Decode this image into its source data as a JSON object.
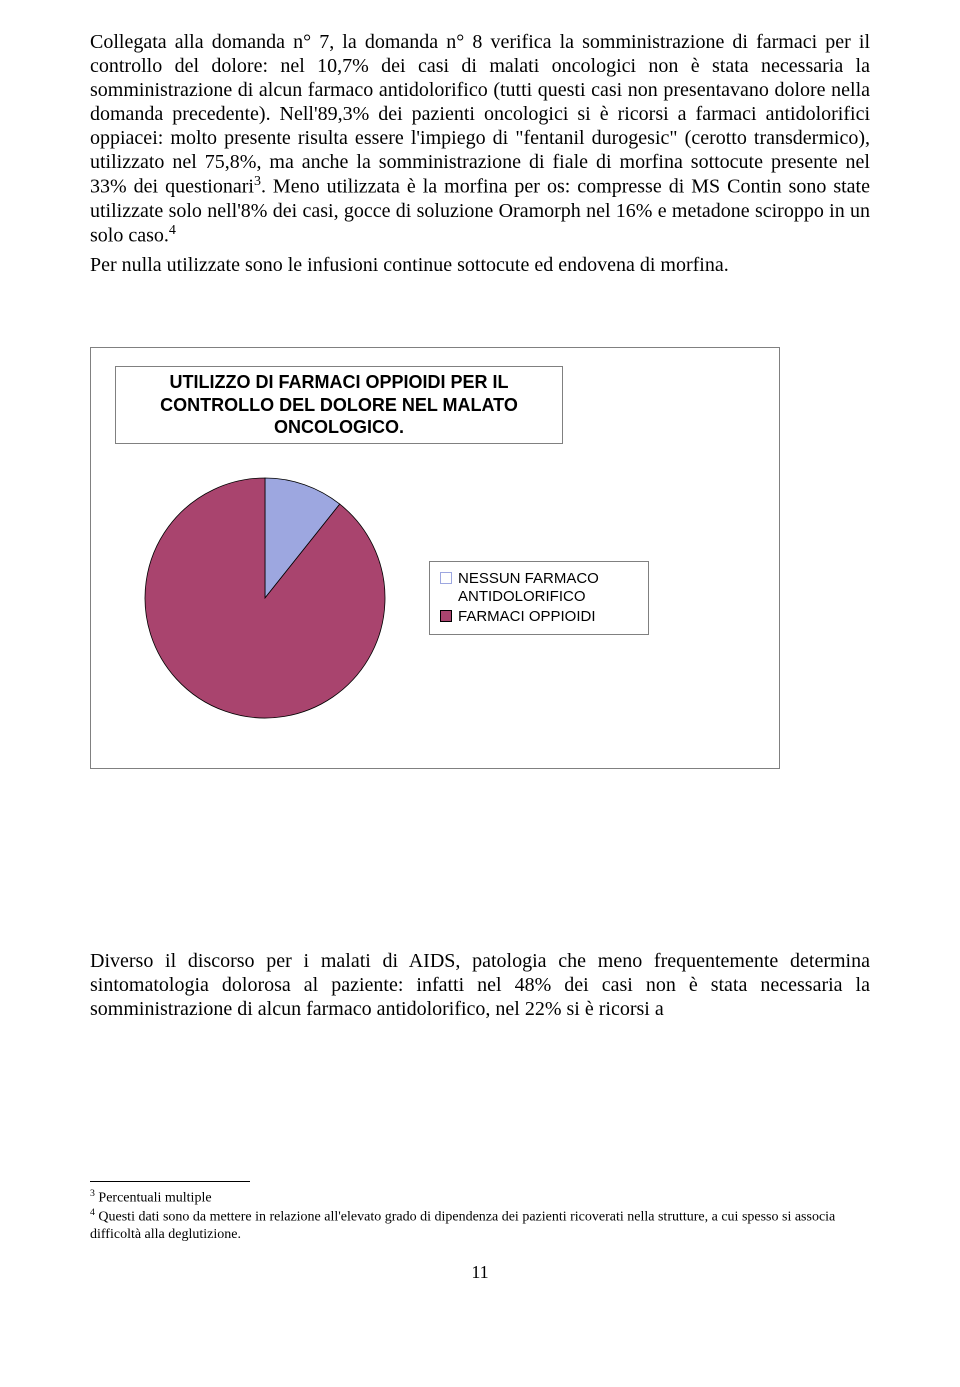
{
  "paragraphs": {
    "p1": "Collegata alla domanda n° 7, la domanda n° 8 verifica la somministrazione di farmaci per il controllo del dolore: nel 10,7% dei casi di malati oncologici non è stata necessaria la somministrazione di alcun farmaco antidolorifico (tutti questi casi non presentavano dolore nella domanda precedente). Nell'89,3% dei pazienti oncologici si è ricorsi a farmaci antidolorifici oppiacei: molto presente risulta essere l'impiego di \"fentanil durogesic\" (cerotto transdermico), utilizzato nel 75,8%, ma anche la somministrazione di fiale di morfina sottocute presente nel 33% dei questionari",
    "p1_sup": "3",
    "p1_tail": ". Meno utilizzata è la morfina per os: compresse di MS Contin sono state utilizzate solo nell'8% dei casi, gocce di soluzione Oramorph nel 16% e metadone sciroppo in un solo caso.",
    "p1_sup2": "4",
    "p2": "Per nulla utilizzate sono le infusioni continue sottocute ed endovena di morfina.",
    "p3": "Diverso il discorso per i malati di AIDS, patologia che meno frequentemente determina sintomatologia dolorosa al paziente: infatti nel 48% dei casi non è stata necessaria la somministrazione di alcun farmaco antidolorifico, nel 22% si è ricorsi a"
  },
  "chart": {
    "type": "pie",
    "title": "UTILIZZO DI FARMACI OPPIOIDI PER IL CONTROLLO DEL DOLORE NEL MALATO ONCOLOGICO.",
    "background_color": "#ffffff",
    "border_color": "#808080",
    "title_fontsize": 18,
    "title_font": "Arial",
    "legend_fontsize": 15,
    "slices": [
      {
        "label": "NESSUN FARMACO ANTIDOLORIFICO",
        "value": 10.7,
        "color": "#9da7e0",
        "swatch_fill": "#ffffff",
        "swatch_border": "#9da7e0"
      },
      {
        "label": "FARMACI OPPIOIDI",
        "value": 89.3,
        "color": "#a9446e",
        "swatch_fill": "#a9446e",
        "swatch_border": "#000000"
      }
    ],
    "stroke_color": "#000000",
    "stroke_width": 0.8,
    "radius": 120,
    "start_angle_deg": -90
  },
  "footnotes": {
    "f3_marker": "3",
    "f3_text": " Percentuali multiple",
    "f4_marker": "4",
    "f4_text": " Questi dati sono da mettere in relazione all'elevato grado di dipendenza dei pazienti ricoverati nella strutture, a cui spesso si associa difficoltà alla deglutizione."
  },
  "page_number": "11"
}
